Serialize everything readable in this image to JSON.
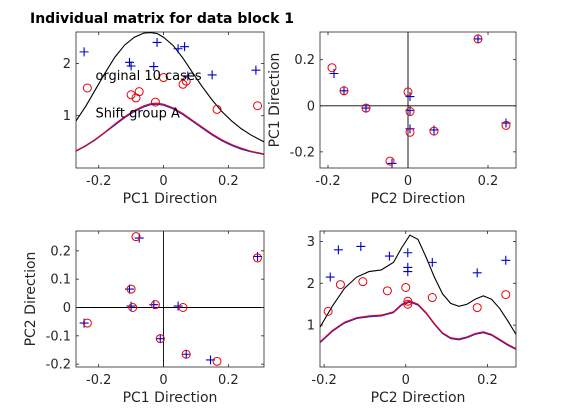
{
  "figure": {
    "title": "Individual matrix for data block 1"
  },
  "colors": {
    "plus": "#0000cc",
    "circle": "#e8000b",
    "black": "#000000",
    "blue": "#1f1fd4",
    "red": "#e8000b"
  },
  "chart_data": [
    {
      "id": "tl",
      "type": "line",
      "xlabel": "PC1 Direction",
      "ylabel": "",
      "xlim": [
        -0.27,
        0.31
      ],
      "ylim": [
        0,
        2.6
      ],
      "xticks": [
        -0.2,
        0,
        0.2
      ],
      "xtick_labels": [
        "-0.2",
        "0",
        "0.2"
      ],
      "yticks": [
        1,
        2
      ],
      "ytick_labels": [
        "1",
        "2"
      ],
      "origin_lines": false,
      "annotations": [
        {
          "text": "orginal 10 cases",
          "x": -0.21,
          "y": 1.77
        },
        {
          "text": "Shift group A",
          "x": -0.21,
          "y": 1.05
        }
      ],
      "plus_points": [
        {
          "x": -0.245,
          "y": 2.22
        },
        {
          "x": -0.105,
          "y": 2.02
        },
        {
          "x": -0.1,
          "y": 1.95
        },
        {
          "x": -0.02,
          "y": 2.4
        },
        {
          "x": 0.045,
          "y": 2.28
        },
        {
          "x": 0.065,
          "y": 2.32
        },
        {
          "x": 0.15,
          "y": 1.78
        },
        {
          "x": 0.285,
          "y": 1.87
        },
        {
          "x": -0.03,
          "y": 1.94
        },
        {
          "x": 0.075,
          "y": 1.76
        }
      ],
      "circle_points": [
        {
          "x": -0.235,
          "y": 1.53
        },
        {
          "x": -0.1,
          "y": 1.4
        },
        {
          "x": -0.085,
          "y": 1.34
        },
        {
          "x": -0.075,
          "y": 1.46
        },
        {
          "x": -0.025,
          "y": 1.26
        },
        {
          "x": 0.0,
          "y": 1.73
        },
        {
          "x": 0.06,
          "y": 1.6
        },
        {
          "x": 0.07,
          "y": 1.66
        },
        {
          "x": 0.165,
          "y": 1.12
        },
        {
          "x": 0.29,
          "y": 1.19
        }
      ],
      "series": [
        {
          "color": "black",
          "x": [
            -0.27,
            -0.24,
            -0.21,
            -0.18,
            -0.15,
            -0.12,
            -0.09,
            -0.06,
            -0.04,
            -0.02,
            0.0,
            0.03,
            0.06,
            0.09,
            0.12,
            0.15,
            0.18,
            0.21,
            0.24,
            0.27,
            0.31
          ],
          "y": [
            0.9,
            1.18,
            1.5,
            1.82,
            2.12,
            2.35,
            2.5,
            2.58,
            2.59,
            2.57,
            2.5,
            2.34,
            2.1,
            1.82,
            1.55,
            1.3,
            1.08,
            0.9,
            0.75,
            0.63,
            0.5
          ]
        },
        {
          "color": "blue",
          "x": [
            -0.27,
            -0.24,
            -0.21,
            -0.18,
            -0.15,
            -0.12,
            -0.09,
            -0.06,
            -0.04,
            -0.02,
            0.0,
            0.03,
            0.06,
            0.09,
            0.12,
            0.15,
            0.18,
            0.21,
            0.24,
            0.27,
            0.31
          ],
          "y": [
            0.32,
            0.42,
            0.54,
            0.68,
            0.82,
            0.96,
            1.08,
            1.17,
            1.21,
            1.22,
            1.2,
            1.13,
            1.02,
            0.89,
            0.76,
            0.63,
            0.52,
            0.43,
            0.36,
            0.31,
            0.26
          ]
        },
        {
          "color": "red",
          "x": [
            -0.27,
            -0.24,
            -0.21,
            -0.18,
            -0.15,
            -0.12,
            -0.09,
            -0.06,
            -0.04,
            -0.02,
            0.0,
            0.03,
            0.06,
            0.09,
            0.12,
            0.15,
            0.18,
            0.21,
            0.24,
            0.27,
            0.31
          ],
          "y": [
            0.33,
            0.43,
            0.55,
            0.69,
            0.84,
            0.98,
            1.1,
            1.19,
            1.23,
            1.24,
            1.22,
            1.15,
            1.04,
            0.91,
            0.78,
            0.65,
            0.54,
            0.45,
            0.38,
            0.32,
            0.27
          ]
        }
      ]
    },
    {
      "id": "tr",
      "type": "scatter",
      "xlabel": "PC2 Direction",
      "ylabel": "PC1 Direction",
      "xlim": [
        -0.22,
        0.27
      ],
      "ylim": [
        -0.27,
        0.32
      ],
      "xticks": [
        -0.2,
        0,
        0.2
      ],
      "xtick_labels": [
        "-0.2",
        "0",
        "0.2"
      ],
      "yticks": [
        -0.2,
        0,
        0.2
      ],
      "ytick_labels": [
        "-0.2",
        "0",
        "0.2"
      ],
      "origin_lines": true,
      "plus_points": [
        {
          "x": -0.185,
          "y": 0.14
        },
        {
          "x": -0.16,
          "y": 0.065
        },
        {
          "x": -0.105,
          "y": -0.01
        },
        {
          "x": -0.04,
          "y": -0.25
        },
        {
          "x": 0.005,
          "y": 0.04
        },
        {
          "x": 0.005,
          "y": -0.02
        },
        {
          "x": 0.005,
          "y": -0.1
        },
        {
          "x": 0.065,
          "y": -0.105
        },
        {
          "x": 0.175,
          "y": 0.29
        },
        {
          "x": 0.245,
          "y": -0.075
        }
      ],
      "circle_points": [
        {
          "x": -0.19,
          "y": 0.165
        },
        {
          "x": -0.16,
          "y": 0.065
        },
        {
          "x": -0.105,
          "y": -0.01
        },
        {
          "x": -0.045,
          "y": -0.24
        },
        {
          "x": 0.0,
          "y": 0.06
        },
        {
          "x": 0.005,
          "y": -0.025
        },
        {
          "x": 0.005,
          "y": -0.115
        },
        {
          "x": 0.065,
          "y": -0.11
        },
        {
          "x": 0.175,
          "y": 0.29
        },
        {
          "x": 0.245,
          "y": -0.085
        }
      ]
    },
    {
      "id": "bl",
      "type": "scatter",
      "xlabel": "PC1 Direction",
      "ylabel": "PC2 Direction",
      "xlim": [
        -0.27,
        0.31
      ],
      "ylim": [
        -0.21,
        0.27
      ],
      "xticks": [
        -0.2,
        0,
        0.2
      ],
      "xtick_labels": [
        "-0.2",
        "0",
        "0.2"
      ],
      "yticks": [
        -0.2,
        -0.1,
        0,
        0.1,
        0.2
      ],
      "ytick_labels": [
        "-0.2",
        "-0.1",
        "0",
        "0.1",
        "0.2"
      ],
      "origin_lines": true,
      "plus_points": [
        {
          "x": -0.245,
          "y": -0.055
        },
        {
          "x": -0.105,
          "y": 0.065
        },
        {
          "x": -0.1,
          "y": 0.005
        },
        {
          "x": -0.075,
          "y": 0.245
        },
        {
          "x": -0.03,
          "y": 0.01
        },
        {
          "x": -0.01,
          "y": -0.11
        },
        {
          "x": 0.045,
          "y": 0.005
        },
        {
          "x": 0.07,
          "y": -0.165
        },
        {
          "x": 0.145,
          "y": -0.185
        },
        {
          "x": 0.29,
          "y": 0.18
        }
      ],
      "circle_points": [
        {
          "x": -0.235,
          "y": -0.055
        },
        {
          "x": -0.1,
          "y": 0.065
        },
        {
          "x": -0.095,
          "y": 0.0
        },
        {
          "x": -0.085,
          "y": 0.25
        },
        {
          "x": -0.025,
          "y": 0.01
        },
        {
          "x": -0.01,
          "y": -0.11
        },
        {
          "x": 0.06,
          "y": 0.0
        },
        {
          "x": 0.07,
          "y": -0.165
        },
        {
          "x": 0.165,
          "y": -0.19
        },
        {
          "x": 0.29,
          "y": 0.175
        }
      ]
    },
    {
      "id": "br",
      "type": "line",
      "xlabel": "PC2 Direction",
      "ylabel": "",
      "xlim": [
        -0.21,
        0.27
      ],
      "ylim": [
        0,
        3.25
      ],
      "xticks": [
        -0.2,
        0,
        0.2
      ],
      "xtick_labels": [
        "-0.2",
        "0",
        "0.2"
      ],
      "yticks": [
        1,
        2,
        3
      ],
      "ytick_labels": [
        "1",
        "2",
        "3"
      ],
      "origin_lines": false,
      "plus_points": [
        {
          "x": -0.185,
          "y": 2.15
        },
        {
          "x": -0.165,
          "y": 2.8
        },
        {
          "x": -0.11,
          "y": 2.88
        },
        {
          "x": -0.04,
          "y": 2.65
        },
        {
          "x": 0.005,
          "y": 2.38
        },
        {
          "x": 0.005,
          "y": 2.28
        },
        {
          "x": 0.005,
          "y": 2.73
        },
        {
          "x": 0.065,
          "y": 2.5
        },
        {
          "x": 0.175,
          "y": 2.25
        },
        {
          "x": 0.245,
          "y": 2.55
        }
      ],
      "circle_points": [
        {
          "x": -0.19,
          "y": 1.33
        },
        {
          "x": -0.16,
          "y": 1.97
        },
        {
          "x": -0.105,
          "y": 2.04
        },
        {
          "x": -0.045,
          "y": 1.82
        },
        {
          "x": 0.0,
          "y": 1.9
        },
        {
          "x": 0.005,
          "y": 1.57
        },
        {
          "x": 0.005,
          "y": 1.5
        },
        {
          "x": 0.065,
          "y": 1.66
        },
        {
          "x": 0.175,
          "y": 1.42
        },
        {
          "x": 0.245,
          "y": 1.73
        }
      ],
      "series": [
        {
          "color": "black",
          "x": [
            -0.21,
            -0.18,
            -0.15,
            -0.12,
            -0.09,
            -0.06,
            -0.03,
            -0.01,
            0.01,
            0.03,
            0.05,
            0.07,
            0.09,
            0.11,
            0.13,
            0.15,
            0.17,
            0.19,
            0.21,
            0.23,
            0.25,
            0.27
          ],
          "y": [
            0.95,
            1.45,
            1.88,
            2.15,
            2.28,
            2.32,
            2.5,
            2.85,
            3.15,
            3.05,
            2.62,
            2.15,
            1.75,
            1.52,
            1.45,
            1.5,
            1.62,
            1.7,
            1.62,
            1.4,
            1.1,
            0.78
          ]
        },
        {
          "color": "blue",
          "x": [
            -0.21,
            -0.18,
            -0.15,
            -0.12,
            -0.09,
            -0.06,
            -0.03,
            -0.01,
            0.01,
            0.03,
            0.05,
            0.07,
            0.09,
            0.11,
            0.13,
            0.15,
            0.17,
            0.19,
            0.21,
            0.23,
            0.25,
            0.27
          ],
          "y": [
            0.58,
            0.85,
            1.05,
            1.16,
            1.2,
            1.22,
            1.3,
            1.48,
            1.55,
            1.48,
            1.28,
            1.02,
            0.8,
            0.68,
            0.65,
            0.7,
            0.78,
            0.82,
            0.76,
            0.64,
            0.52,
            0.42
          ]
        },
        {
          "color": "red",
          "x": [
            -0.21,
            -0.18,
            -0.15,
            -0.12,
            -0.09,
            -0.06,
            -0.03,
            -0.01,
            0.01,
            0.03,
            0.05,
            0.07,
            0.09,
            0.11,
            0.13,
            0.15,
            0.17,
            0.19,
            0.21,
            0.23,
            0.25,
            0.27
          ],
          "y": [
            0.6,
            0.87,
            1.07,
            1.18,
            1.22,
            1.24,
            1.32,
            1.5,
            1.58,
            1.5,
            1.3,
            1.04,
            0.82,
            0.7,
            0.67,
            0.72,
            0.8,
            0.84,
            0.78,
            0.66,
            0.54,
            0.44
          ]
        }
      ]
    }
  ]
}
